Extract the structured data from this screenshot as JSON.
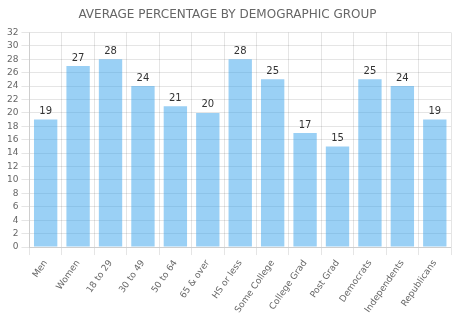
{
  "chart_data": {
    "type": "bar",
    "title": "AVERAGE PERCENTAGE BY DEMOGRAPHIC GROUP",
    "categories": [
      "Men",
      "Women",
      "18 to 29",
      "30 to 49",
      "50 to 64",
      "65 & over",
      "HS or less",
      "Some College",
      "College Grad",
      "Post Grad",
      "Democrats",
      "Independents",
      "Republicans"
    ],
    "values": [
      19,
      27,
      28,
      24,
      21,
      20,
      28,
      25,
      17,
      15,
      25,
      24,
      19
    ],
    "ylim": [
      0,
      32
    ],
    "yticks": [
      0,
      2,
      4,
      6,
      8,
      10,
      12,
      14,
      16,
      18,
      20,
      22,
      24,
      26,
      28,
      30,
      32
    ],
    "grid": true,
    "data_labels": true
  }
}
